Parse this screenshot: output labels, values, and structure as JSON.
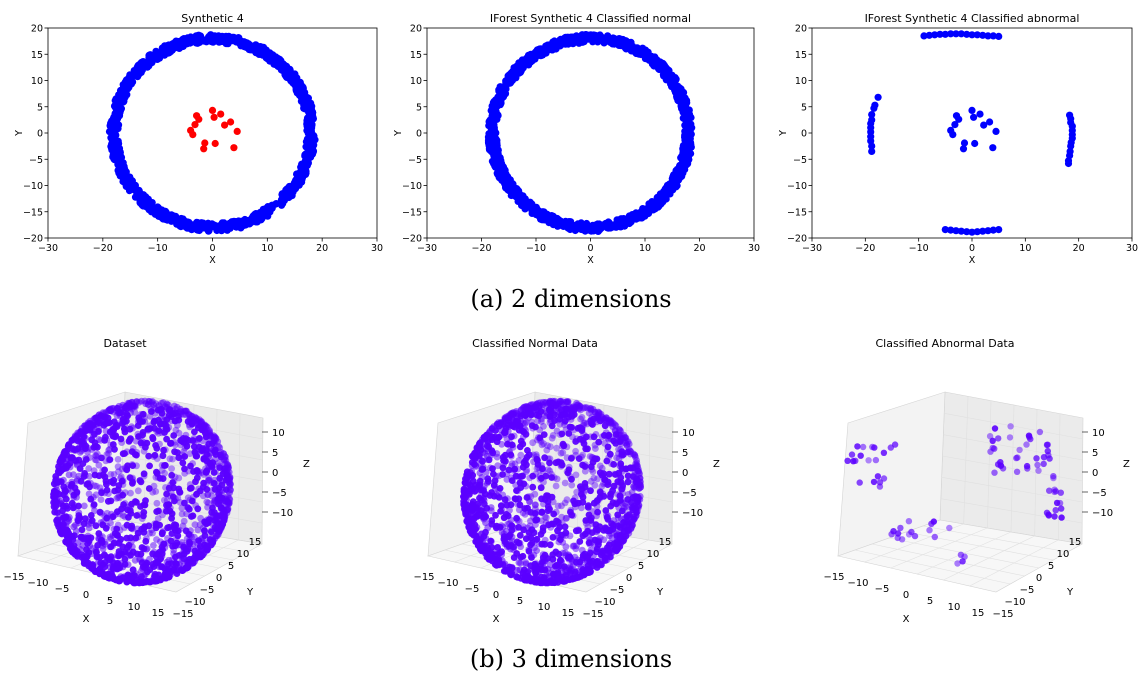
{
  "captions": {
    "a": "(a) 2 dimensions",
    "b": "(b) 3 dimensions"
  },
  "colors": {
    "normal2d": "#0000ff",
    "outlier2d": "#ff0000",
    "points3d": "#5b00ff",
    "pane": "#f2f2f2"
  },
  "chart_data": [
    {
      "type": "scatter",
      "title": "Synthetic 4",
      "xlabel": "X",
      "ylabel": "Y",
      "xlim": [
        -30,
        30
      ],
      "ylim": [
        -20,
        20
      ],
      "xticks": [
        -30,
        -20,
        -10,
        0,
        10,
        20,
        30
      ],
      "yticks": [
        -20,
        -15,
        -10,
        -5,
        0,
        5,
        10,
        15,
        20
      ],
      "series": [
        {
          "color": "#0000ff",
          "shape": "ring",
          "center": [
            0,
            0
          ],
          "radius": 18,
          "approx_points": 1000
        },
        {
          "color": "#ff0000",
          "points": [
            [
              0,
              4.3
            ],
            [
              -2.9,
              3.3
            ],
            [
              -2.5,
              2.6
            ],
            [
              1.5,
              3.6
            ],
            [
              0.3,
              3.0
            ],
            [
              2.2,
              1.5
            ],
            [
              3.3,
              2.1
            ],
            [
              4.5,
              0.3
            ],
            [
              -4.0,
              0.5
            ],
            [
              -3.2,
              1.6
            ],
            [
              -3.6,
              -0.3
            ],
            [
              -1.4,
              -1.9
            ],
            [
              0.5,
              -2.0
            ],
            [
              -1.6,
              -3.0
            ],
            [
              3.9,
              -2.8
            ]
          ]
        }
      ]
    },
    {
      "type": "scatter",
      "title": "IForest Synthetic 4 Classified normal",
      "xlabel": "X",
      "ylabel": "Y",
      "xlim": [
        -30,
        30
      ],
      "ylim": [
        -20,
        20
      ],
      "xticks": [
        -30,
        -20,
        -10,
        0,
        10,
        20,
        30
      ],
      "yticks": [
        -20,
        -15,
        -10,
        -5,
        0,
        5,
        10,
        15,
        20
      ],
      "series": [
        {
          "color": "#0000ff",
          "shape": "ring",
          "center": [
            0,
            0
          ],
          "radius": 18,
          "approx_points": 1000
        }
      ]
    },
    {
      "type": "scatter",
      "title": "IForest Synthetic 4 Classified abnormal",
      "xlabel": "X",
      "ylabel": "Y",
      "xlim": [
        -30,
        30
      ],
      "ylim": [
        -20,
        20
      ],
      "xticks": [
        -30,
        -20,
        -10,
        0,
        10,
        20,
        30
      ],
      "yticks": [
        -20,
        -15,
        -10,
        -5,
        0,
        5,
        10,
        15,
        20
      ],
      "series": [
        {
          "color": "#0000ff",
          "points": [
            [
              0,
              4.3
            ],
            [
              -2.9,
              3.3
            ],
            [
              -2.5,
              2.6
            ],
            [
              1.5,
              3.6
            ],
            [
              0.3,
              3.0
            ],
            [
              2.2,
              1.5
            ],
            [
              3.3,
              2.1
            ],
            [
              4.5,
              0.3
            ],
            [
              -4.0,
              0.5
            ],
            [
              -3.2,
              1.6
            ],
            [
              -3.6,
              -0.3
            ],
            [
              -1.4,
              -1.9
            ],
            [
              0.5,
              -2.0
            ],
            [
              -1.6,
              -3.0
            ],
            [
              3.9,
              -2.8
            ],
            [
              -9,
              18.5
            ],
            [
              -8,
              18.6
            ],
            [
              -7,
              18.7
            ],
            [
              -6,
              18.8
            ],
            [
              -5,
              18.8
            ],
            [
              -4,
              18.9
            ],
            [
              -3,
              18.9
            ],
            [
              -2,
              18.9
            ],
            [
              -1,
              18.8
            ],
            [
              0,
              18.7
            ],
            [
              1,
              18.7
            ],
            [
              2,
              18.6
            ],
            [
              3,
              18.5
            ],
            [
              4,
              18.5
            ],
            [
              5,
              18.4
            ],
            [
              -5,
              -18.4
            ],
            [
              -4,
              -18.5
            ],
            [
              -3,
              -18.6
            ],
            [
              -2,
              -18.7
            ],
            [
              -1,
              -18.8
            ],
            [
              0,
              -18.9
            ],
            [
              1,
              -18.8
            ],
            [
              2,
              -18.7
            ],
            [
              3,
              -18.6
            ],
            [
              4,
              -18.5
            ],
            [
              5,
              -18.4
            ],
            [
              -17.6,
              6.8
            ],
            [
              -18.2,
              5.3
            ],
            [
              -18.4,
              4.7
            ],
            [
              -18.8,
              3.5
            ],
            [
              -18.8,
              2.5
            ],
            [
              -19.0,
              1.8
            ],
            [
              -19.0,
              1.0
            ],
            [
              -19.0,
              0.2
            ],
            [
              -19.0,
              -0.7
            ],
            [
              -19.0,
              -1.5
            ],
            [
              -18.8,
              -2.5
            ],
            [
              -18.8,
              -3.5
            ],
            [
              18.3,
              3.4
            ],
            [
              18.5,
              2.7
            ],
            [
              18.5,
              2.0
            ],
            [
              18.8,
              1.3
            ],
            [
              18.8,
              0.5
            ],
            [
              18.8,
              -0.3
            ],
            [
              18.8,
              -1.0
            ],
            [
              18.6,
              -1.8
            ],
            [
              18.5,
              -2.5
            ],
            [
              18.4,
              -3.5
            ],
            [
              18.3,
              -4.3
            ],
            [
              18.1,
              -5.3
            ],
            [
              18.1,
              -5.8
            ]
          ]
        }
      ]
    },
    {
      "type": "scatter3d",
      "title": "Dataset",
      "xlabel": "X",
      "ylabel": "Y",
      "zlabel": "Z",
      "xticks": [
        -15,
        -10,
        -5,
        0,
        5,
        10,
        15
      ],
      "yticks": [
        15,
        10,
        5,
        0,
        -5,
        -10,
        -15
      ],
      "zticks": [
        10,
        5,
        0,
        -5,
        -10
      ],
      "color": "#5b00ff",
      "shape": "sphere",
      "radius": 13,
      "approx_points": 1500
    },
    {
      "type": "scatter3d",
      "title": "Classified Normal Data",
      "xlabel": "X",
      "ylabel": "Y",
      "zlabel": "Z",
      "xticks": [
        -15,
        -10,
        -5,
        0,
        5,
        10,
        15
      ],
      "yticks": [
        15,
        10,
        5,
        0,
        -5,
        -10,
        -15
      ],
      "zticks": [
        10,
        5,
        0,
        -5,
        -10
      ],
      "color": "#5b00ff",
      "shape": "sphere",
      "radius": 13,
      "approx_points": 1500
    },
    {
      "type": "scatter3d",
      "title": "Classified Abnormal Data",
      "xlabel": "X",
      "ylabel": "Y",
      "zlabel": "Z",
      "xticks": [
        -15,
        -10,
        -5,
        0,
        5,
        10,
        15
      ],
      "yticks": [
        15,
        10,
        5,
        0,
        -5,
        -10,
        -15
      ],
      "zticks": [
        10,
        5,
        0,
        -5,
        -10
      ],
      "color": "#5b00ff",
      "shape": "clusters",
      "approx_points": 90
    }
  ]
}
